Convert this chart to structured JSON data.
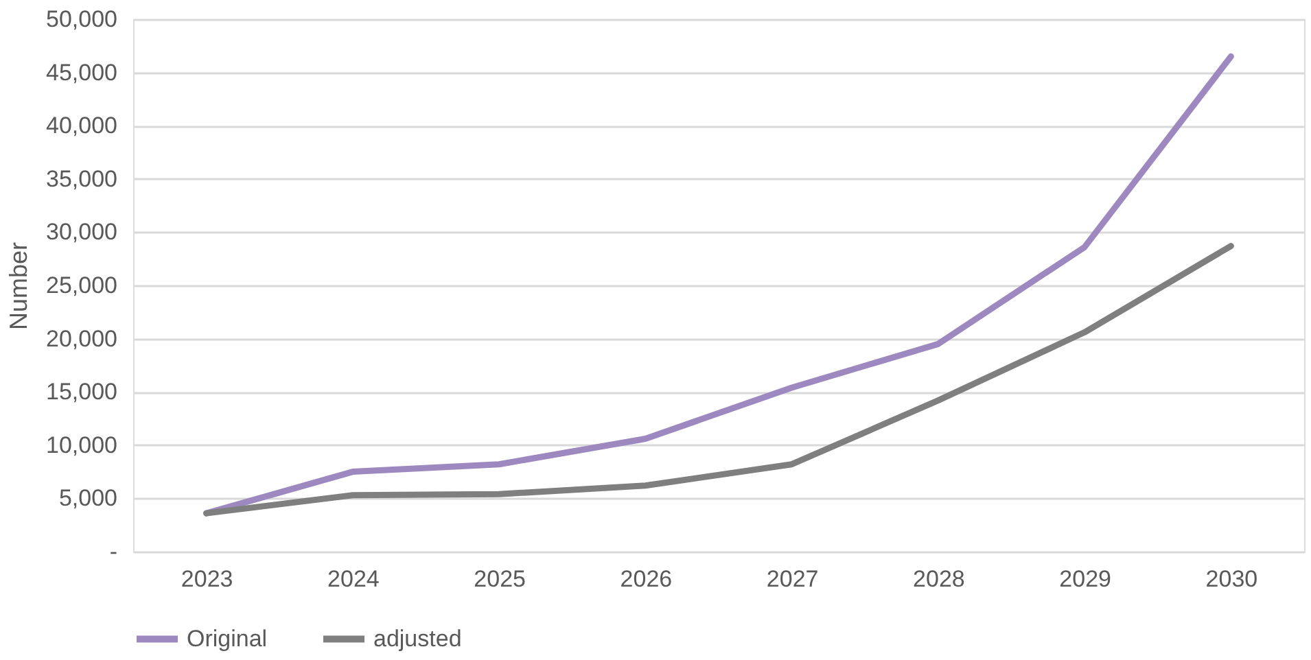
{
  "chart_data": {
    "type": "line",
    "ylabel": "Number",
    "categories": [
      "2023",
      "2024",
      "2025",
      "2026",
      "2027",
      "2028",
      "2029",
      "2030"
    ],
    "series": [
      {
        "name": "Original",
        "color": "#9e88c0",
        "values": [
          3600,
          7500,
          8200,
          10600,
          15400,
          19500,
          28600,
          46500
        ]
      },
      {
        "name": "adjusted",
        "color": "#7f7f7f",
        "values": [
          3600,
          5300,
          5400,
          6200,
          8200,
          14200,
          20600,
          28700
        ]
      }
    ],
    "ylim": [
      0,
      50000
    ],
    "yticks": [
      {
        "value": 0,
        "label": "-"
      },
      {
        "value": 5000,
        "label": "5,000"
      },
      {
        "value": 10000,
        "label": "10,000"
      },
      {
        "value": 15000,
        "label": "15,000"
      },
      {
        "value": 20000,
        "label": "20,000"
      },
      {
        "value": 25000,
        "label": "25,000"
      },
      {
        "value": 30000,
        "label": "30,000"
      },
      {
        "value": 35000,
        "label": "35,000"
      },
      {
        "value": 40000,
        "label": "40,000"
      },
      {
        "value": 45000,
        "label": "45,000"
      },
      {
        "value": 50000,
        "label": "50,000"
      }
    ],
    "grid": "y",
    "legend": "bottom",
    "marker": "none",
    "line_style": "solid"
  }
}
